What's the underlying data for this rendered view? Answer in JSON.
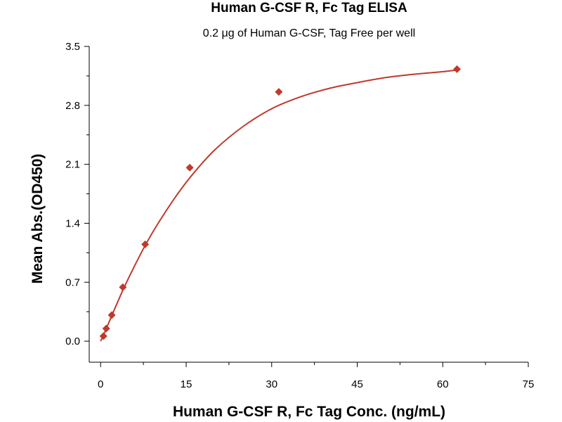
{
  "chart_data": {
    "type": "scatter",
    "title": "Human G-CSF R, Fc Tag ELISA",
    "subtitle": "0.2 μg of Human G-CSF, Tag Free per well",
    "xlabel": "Human G-CSF R, Fc Tag Conc. (ng/mL)",
    "ylabel": "Mean Abs.(OD450)",
    "xlim": [
      -2,
      75
    ],
    "ylim": [
      -0.25,
      3.5
    ],
    "xticks": [
      0,
      15,
      30,
      45,
      60,
      75
    ],
    "xtick_labels": [
      "0",
      "15",
      "30",
      "45",
      "60",
      "75"
    ],
    "yticks": [
      0.0,
      0.7,
      1.4,
      2.1,
      2.8,
      3.5
    ],
    "ytick_labels": [
      "0.0",
      "0.7",
      "1.4",
      "2.1",
      "2.8",
      "3.5"
    ],
    "grid": false,
    "marker_color": "#c0392b",
    "curve_color": "#c0392b",
    "series": [
      {
        "x": [
          0.49,
          0.98,
          1.95,
          3.9,
          7.81,
          15.63,
          31.25,
          62.5
        ],
        "y": [
          0.06,
          0.15,
          0.31,
          0.64,
          1.15,
          2.06,
          2.96,
          3.23
        ]
      }
    ],
    "fit_curve": {
      "x": [
        0,
        1,
        2,
        4,
        6,
        8,
        10,
        13,
        16,
        20,
        25,
        30,
        35,
        40,
        45,
        50,
        55,
        60,
        62.5
      ],
      "y": [
        0.0,
        0.15,
        0.31,
        0.62,
        0.9,
        1.16,
        1.39,
        1.7,
        1.97,
        2.27,
        2.55,
        2.76,
        2.9,
        3.0,
        3.07,
        3.13,
        3.17,
        3.2,
        3.22
      ]
    }
  }
}
